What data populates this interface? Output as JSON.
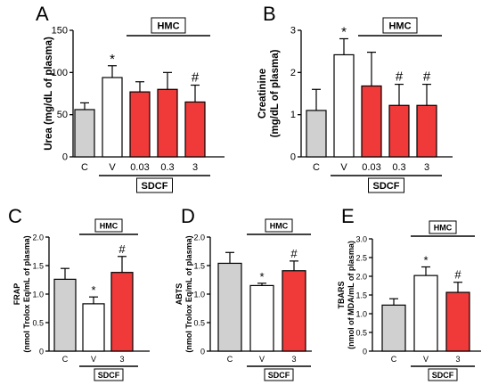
{
  "colors": {
    "control": "#d0d0d0",
    "vehicle": "#ffffff",
    "treated": "#f03a3a",
    "axis": "#000000"
  },
  "chart_data": [
    {
      "letter": "A",
      "type": "bar",
      "ylabel": "Urea (mg/dL of plasma)",
      "ylim": [
        0,
        150
      ],
      "yticks": [
        "0",
        "50",
        "100",
        "150"
      ],
      "categories": [
        "C",
        "V",
        "0.03",
        "0.3",
        "3"
      ],
      "values": [
        56,
        94,
        77,
        80,
        65
      ],
      "errors": [
        8,
        14,
        12,
        20,
        20
      ],
      "fills": [
        "control",
        "vehicle",
        "treated",
        "treated",
        "treated"
      ],
      "marks": [
        "",
        "*",
        "",
        "",
        "#"
      ],
      "group_top": "HMC",
      "group_bottom": "SDCF"
    },
    {
      "letter": "B",
      "type": "bar",
      "ylabel": "Creatinine\n(mg/dL of plasma)",
      "ylim": [
        0,
        3
      ],
      "yticks": [
        "0",
        "1",
        "2",
        "3"
      ],
      "categories": [
        "C",
        "V",
        "0.03",
        "0.3",
        "3"
      ],
      "values": [
        1.1,
        2.42,
        1.68,
        1.22,
        1.22
      ],
      "errors": [
        0.5,
        0.38,
        0.8,
        0.5,
        0.5
      ],
      "fills": [
        "control",
        "vehicle",
        "treated",
        "treated",
        "treated"
      ],
      "marks": [
        "",
        "*",
        "",
        "#",
        "#"
      ],
      "group_top": "HMC",
      "group_bottom": "SDCF"
    },
    {
      "letter": "C",
      "type": "bar",
      "ylabel": "FRAP\n(nmol Trolox Eq/mL of plasma)",
      "ylim": [
        0,
        2
      ],
      "yticks": [
        "0",
        "0.5",
        "1.0",
        "1.5",
        "2.0"
      ],
      "categories": [
        "C",
        "V",
        "3"
      ],
      "values": [
        1.26,
        0.83,
        1.38
      ],
      "errors": [
        0.19,
        0.12,
        0.28
      ],
      "fills": [
        "control",
        "vehicle",
        "treated"
      ],
      "marks": [
        "",
        "*",
        "#"
      ],
      "group_top": "HMC",
      "group_bottom": "SDCF"
    },
    {
      "letter": "D",
      "type": "bar",
      "ylabel": "ABTS\n(nmol Trolox Eq/mL of plasma)",
      "ylim": [
        0,
        2
      ],
      "yticks": [
        "0",
        "0.5",
        "1.0",
        "1.5",
        "2.0"
      ],
      "categories": [
        "C",
        "V",
        "3"
      ],
      "values": [
        1.54,
        1.15,
        1.41
      ],
      "errors": [
        0.19,
        0.04,
        0.17
      ],
      "fills": [
        "control",
        "vehicle",
        "treated"
      ],
      "marks": [
        "",
        "*",
        "#"
      ],
      "group_top": "HMC",
      "group_bottom": "SDCF"
    },
    {
      "letter": "E",
      "type": "bar",
      "ylabel": "TBARS\n(nmol of MDA/mL of plasma)",
      "ylim": [
        0,
        3
      ],
      "yticks": [
        "0",
        "0.5",
        "1.0",
        "1.5",
        "2.0",
        "2.5",
        "3.0"
      ],
      "categories": [
        "C",
        "V",
        "3"
      ],
      "values": [
        1.23,
        2.02,
        1.57
      ],
      "errors": [
        0.17,
        0.23,
        0.27
      ],
      "fills": [
        "control",
        "vehicle",
        "treated"
      ],
      "marks": [
        "",
        "*",
        "#"
      ],
      "group_top": "HMC",
      "group_bottom": "SDCF"
    }
  ]
}
